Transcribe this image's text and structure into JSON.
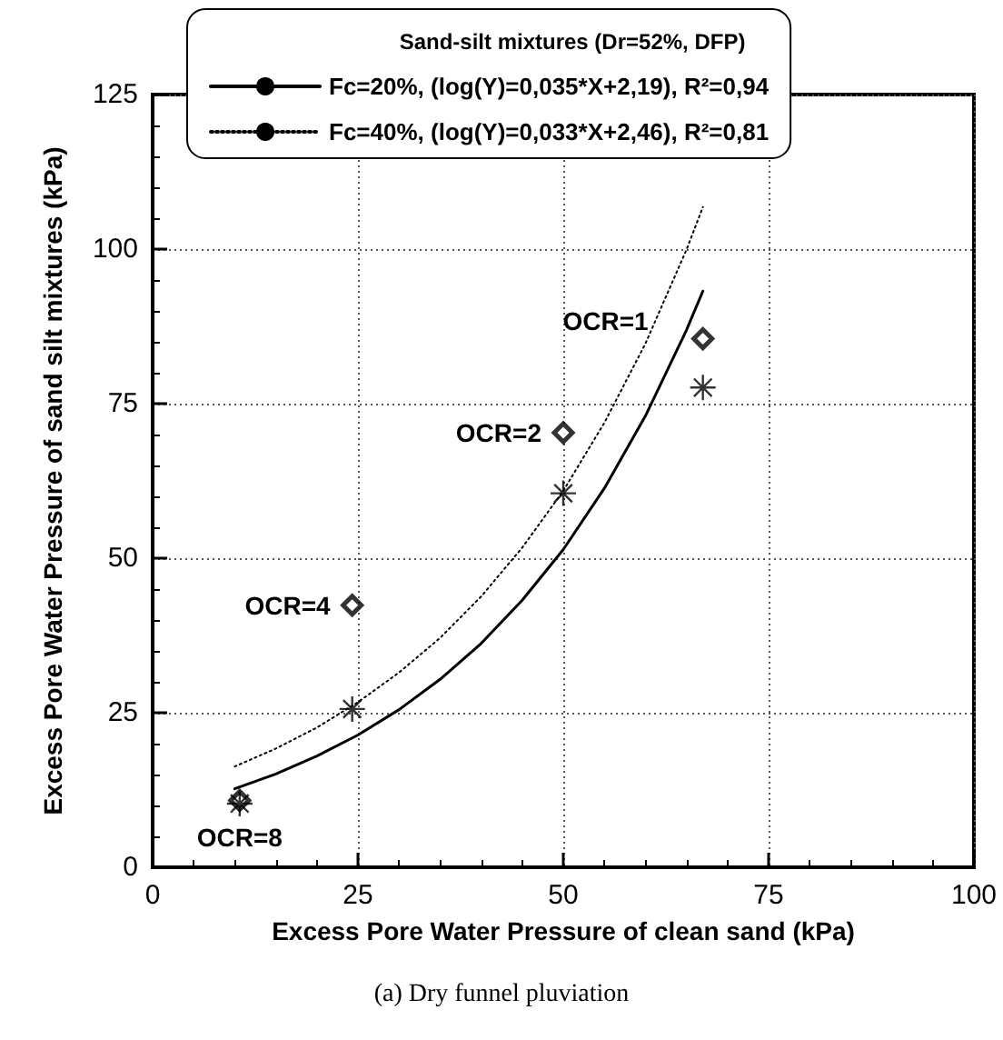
{
  "chart_data": {
    "type": "scatter",
    "xlabel": "Excess Pore Water Pressure of clean sand (kPa)",
    "ylabel": "Excess Pore Water Pressure of sand silt mixtures (kPa)",
    "legend_title": "Sand-silt mixtures (Dr=52%, DFP)",
    "xlim": [
      0,
      100
    ],
    "xticks": [
      0,
      25,
      50,
      75,
      100
    ],
    "ylim": [
      0,
      125
    ],
    "yticks": [
      0,
      25,
      50,
      75,
      100,
      125
    ],
    "grid": true,
    "legend": "top",
    "series": [
      {
        "name": "Fc=20%, (log(Y)=0,035*X+2,19), R²=0,94",
        "type": "line",
        "line_style": "solid",
        "marker": "none",
        "color": "#000000",
        "x": [
          10,
          15,
          20,
          25,
          30,
          35,
          40,
          45,
          50,
          55,
          60,
          65,
          67
        ],
        "values": [
          12.7,
          15.1,
          18.0,
          21.4,
          25.5,
          30.4,
          36.2,
          43.2,
          51.4,
          61.3,
          73.0,
          86.9,
          93.2
        ]
      },
      {
        "name": "Fc=40%, (log(Y)=0,033*X+2,46), R²=0,81",
        "type": "line",
        "line_style": "dotted",
        "marker": "none",
        "color": "#000000",
        "x": [
          10,
          15,
          20,
          25,
          30,
          35,
          40,
          45,
          50,
          55,
          60,
          65,
          67
        ],
        "values": [
          16.3,
          19.2,
          22.6,
          26.7,
          31.5,
          37.1,
          43.8,
          51.7,
          60.9,
          71.9,
          84.7,
          99.9,
          106.8
        ]
      },
      {
        "marker": "diamond",
        "color": "#000000",
        "x": [
          10.6,
          24.3,
          50,
          67
        ],
        "values": [
          10.8,
          42.4,
          70.3,
          85.5
        ]
      },
      {
        "marker": "cross",
        "color": "#000000",
        "x": [
          10.6,
          24.3,
          50,
          67
        ],
        "values": [
          10.3,
          25.6,
          60.5,
          77.6
        ]
      }
    ],
    "annotations": [
      {
        "text": "OCR=1",
        "x": 67,
        "y": 85.5
      },
      {
        "text": "OCR=2",
        "x": 50,
        "y": 70.3
      },
      {
        "text": "OCR=4",
        "x": 24.3,
        "y": 42.4
      },
      {
        "text": "OCR=8",
        "x": 10.6,
        "y": 10.8
      },
      "(a) Dry funnel pluviation"
    ]
  }
}
